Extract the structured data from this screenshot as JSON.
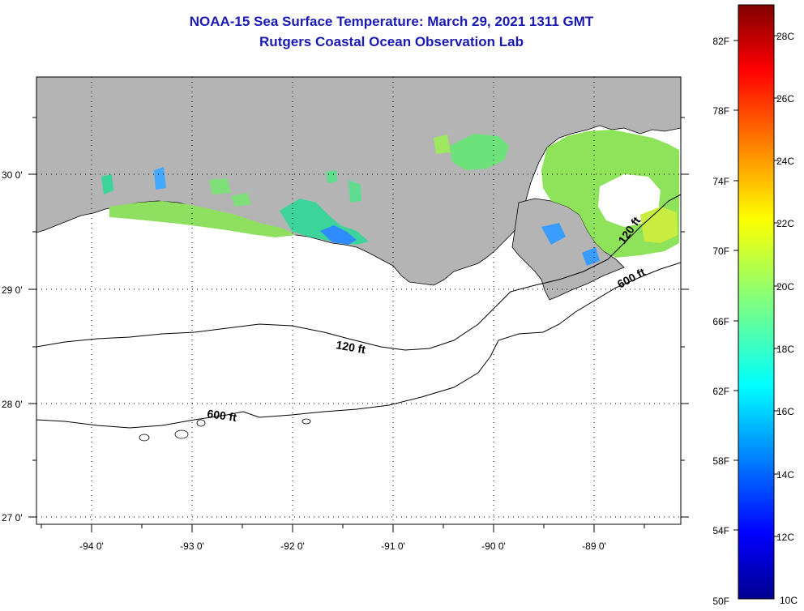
{
  "title": "NOAA-15 Sea Surface Temperature:  March 29, 2021 1311 GMT",
  "subtitle": "Rutgers Coastal Ocean Observation Lab",
  "map": {
    "lon_labels": [
      "-94 0'",
      "-93 0'",
      "-92 0'",
      "-91 0'",
      "-90 0'",
      "-89 0'"
    ],
    "lat_labels": [
      "30 0'",
      "29 0'",
      "28 0'",
      "27 0'"
    ],
    "contour_labels": [
      "120 ft",
      "600 ft",
      "120 ft",
      "600 ft"
    ],
    "colors": {
      "land": "#b4b4b4",
      "ocean": "#ffffff",
      "title": "#1a1ab4"
    }
  },
  "colorbar": {
    "fahrenheit_labels": [
      "82F",
      "78F",
      "74F",
      "70F",
      "66F",
      "62F",
      "58F",
      "54F",
      "50F"
    ],
    "celsius_labels": [
      "28C",
      "26C",
      "24C",
      "22C",
      "20C",
      "18C",
      "16C",
      "14C",
      "12C",
      "10C"
    ],
    "colormap": "jet"
  }
}
